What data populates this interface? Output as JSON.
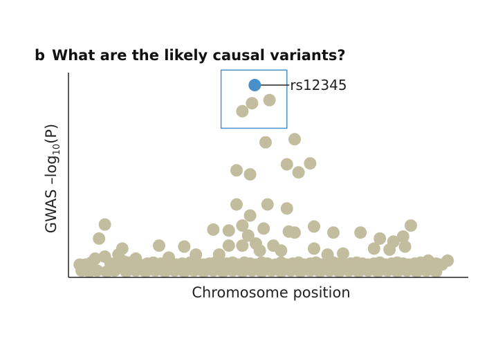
{
  "panel_letter": "b",
  "panel_title": "What are the likely causal variants?",
  "colors": {
    "point": "#c3bd9f",
    "highlight": "#4a90c8",
    "box": "#4a90c8",
    "axis": "#222222"
  },
  "chart_data": {
    "type": "scatter",
    "xlabel": "Chromosome position",
    "ylabel": {
      "prefix": "GWAS –log",
      "sub": "10",
      "suffix": "(P)"
    },
    "xlim": [
      0,
      100
    ],
    "ylim": [
      0,
      100
    ],
    "grid": false,
    "highlight": {
      "label": "rs12345",
      "x": 47.2,
      "y": 95.5
    },
    "box": {
      "x0": 38.5,
      "x1": 55.5,
      "y0": 74,
      "y1": 103
    },
    "series": [
      {
        "points": [
          [
            44.0,
            82.5
          ],
          [
            46.5,
            86.5
          ],
          [
            51.0,
            88.0
          ],
          [
            50.0,
            67.0
          ],
          [
            57.5,
            68.5
          ],
          [
            42.5,
            53.0
          ],
          [
            46.0,
            51.0
          ],
          [
            55.5,
            56.0
          ],
          [
            58.5,
            52.0
          ],
          [
            61.5,
            56.5
          ],
          [
            42.5,
            36.0
          ],
          [
            46.0,
            30.5
          ],
          [
            50.5,
            36.0
          ],
          [
            55.5,
            34.0
          ],
          [
            44.0,
            25.5
          ],
          [
            45.5,
            20.5
          ],
          [
            49.5,
            24.0
          ],
          [
            56.0,
            22.5
          ],
          [
            57.5,
            22.0
          ],
          [
            48.5,
            13.0
          ],
          [
            54.0,
            13.0
          ],
          [
            62.5,
            25.0
          ],
          [
            67.5,
            22.0
          ],
          [
            74.5,
            22.0
          ],
          [
            79.5,
            19.0
          ],
          [
            83.0,
            17.5
          ],
          [
            85.5,
            20.0
          ],
          [
            87.5,
            25.5
          ],
          [
            8.5,
            26.0
          ],
          [
            7.0,
            19.0
          ],
          [
            13.0,
            14.0
          ],
          [
            22.5,
            15.5
          ],
          [
            29.0,
            15.0
          ],
          [
            36.5,
            23.5
          ],
          [
            40.5,
            23.0
          ],
          [
            12.0,
            11.0
          ],
          [
            16.5,
            9.0
          ],
          [
            25.0,
            9.5
          ],
          [
            32.0,
            11.0
          ],
          [
            38.0,
            11.0
          ],
          [
            40.5,
            15.5
          ],
          [
            44.0,
            15.5
          ],
          [
            47.5,
            16.5
          ],
          [
            52.0,
            15.5
          ],
          [
            62.5,
            14.0
          ],
          [
            66.0,
            11.0
          ],
          [
            70.0,
            11.5
          ],
          [
            78.0,
            14.0
          ],
          [
            82.0,
            13.5
          ],
          [
            86.0,
            15.0
          ],
          [
            92.0,
            8.0
          ],
          [
            97.0,
            8.0
          ],
          [
            2.0,
            6.0
          ],
          [
            3.5,
            6.0
          ],
          [
            5.0,
            7.0
          ],
          [
            6.0,
            9.0
          ],
          [
            8.5,
            10.0
          ],
          [
            10.0,
            6.5
          ],
          [
            11.5,
            6.0
          ],
          [
            13.5,
            7.5
          ],
          [
            15.0,
            7.0
          ],
          [
            17.5,
            6.0
          ],
          [
            19.5,
            6.5
          ],
          [
            21.0,
            7.0
          ],
          [
            23.0,
            6.5
          ],
          [
            25.5,
            6.0
          ],
          [
            27.0,
            6.0
          ],
          [
            28.5,
            6.5
          ],
          [
            30.5,
            7.0
          ],
          [
            32.5,
            6.5
          ],
          [
            34.0,
            6.0
          ],
          [
            35.5,
            6.5
          ],
          [
            37.0,
            7.0
          ],
          [
            38.5,
            6.0
          ],
          [
            40.0,
            6.5
          ],
          [
            41.5,
            7.0
          ],
          [
            43.0,
            6.0
          ],
          [
            44.5,
            7.0
          ],
          [
            46.0,
            6.5
          ],
          [
            47.5,
            6.0
          ],
          [
            49.0,
            7.0
          ],
          [
            50.5,
            6.5
          ],
          [
            52.5,
            6.0
          ],
          [
            54.0,
            7.0
          ],
          [
            55.5,
            6.0
          ],
          [
            57.0,
            6.5
          ],
          [
            58.5,
            7.0
          ],
          [
            60.0,
            6.0
          ],
          [
            61.5,
            6.5
          ],
          [
            63.0,
            7.0
          ],
          [
            64.5,
            6.0
          ],
          [
            66.0,
            6.5
          ],
          [
            67.5,
            7.0
          ],
          [
            69.0,
            6.5
          ],
          [
            70.5,
            6.0
          ],
          [
            72.0,
            6.5
          ],
          [
            73.5,
            7.0
          ],
          [
            75.0,
            6.5
          ],
          [
            76.5,
            6.0
          ],
          [
            78.0,
            6.5
          ],
          [
            79.5,
            7.0
          ],
          [
            81.0,
            6.0
          ],
          [
            82.5,
            6.5
          ],
          [
            84.0,
            7.0
          ],
          [
            85.5,
            6.5
          ],
          [
            87.0,
            6.0
          ],
          [
            88.5,
            6.5
          ],
          [
            90.0,
            7.0
          ],
          [
            91.5,
            6.0
          ],
          [
            94.0,
            6.5
          ],
          [
            95.5,
            6.0
          ],
          [
            2.5,
            3.0
          ],
          [
            4.5,
            2.5
          ],
          [
            6.5,
            3.0
          ],
          [
            9.0,
            2.5
          ],
          [
            11.0,
            3.0
          ],
          [
            14.0,
            2.5
          ],
          [
            16.5,
            3.0
          ],
          [
            19.0,
            2.5
          ],
          [
            21.5,
            3.0
          ],
          [
            24.0,
            2.5
          ],
          [
            26.5,
            3.0
          ],
          [
            29.0,
            2.5
          ],
          [
            31.5,
            3.0
          ],
          [
            34.0,
            2.5
          ],
          [
            36.5,
            3.0
          ],
          [
            39.0,
            2.5
          ],
          [
            41.5,
            3.0
          ],
          [
            44.0,
            2.5
          ],
          [
            46.5,
            3.0
          ],
          [
            49.0,
            2.5
          ],
          [
            51.5,
            3.0
          ],
          [
            54.0,
            2.5
          ],
          [
            56.5,
            3.0
          ],
          [
            59.0,
            2.5
          ],
          [
            61.5,
            3.0
          ],
          [
            64.0,
            2.5
          ],
          [
            66.5,
            3.0
          ],
          [
            69.0,
            2.5
          ],
          [
            71.5,
            3.0
          ],
          [
            74.0,
            2.5
          ],
          [
            76.5,
            3.0
          ],
          [
            79.0,
            2.5
          ],
          [
            81.5,
            3.0
          ],
          [
            84.0,
            2.5
          ],
          [
            86.5,
            3.0
          ],
          [
            89.0,
            2.5
          ],
          [
            91.5,
            3.0
          ],
          [
            94.0,
            2.5
          ]
        ]
      }
    ]
  }
}
